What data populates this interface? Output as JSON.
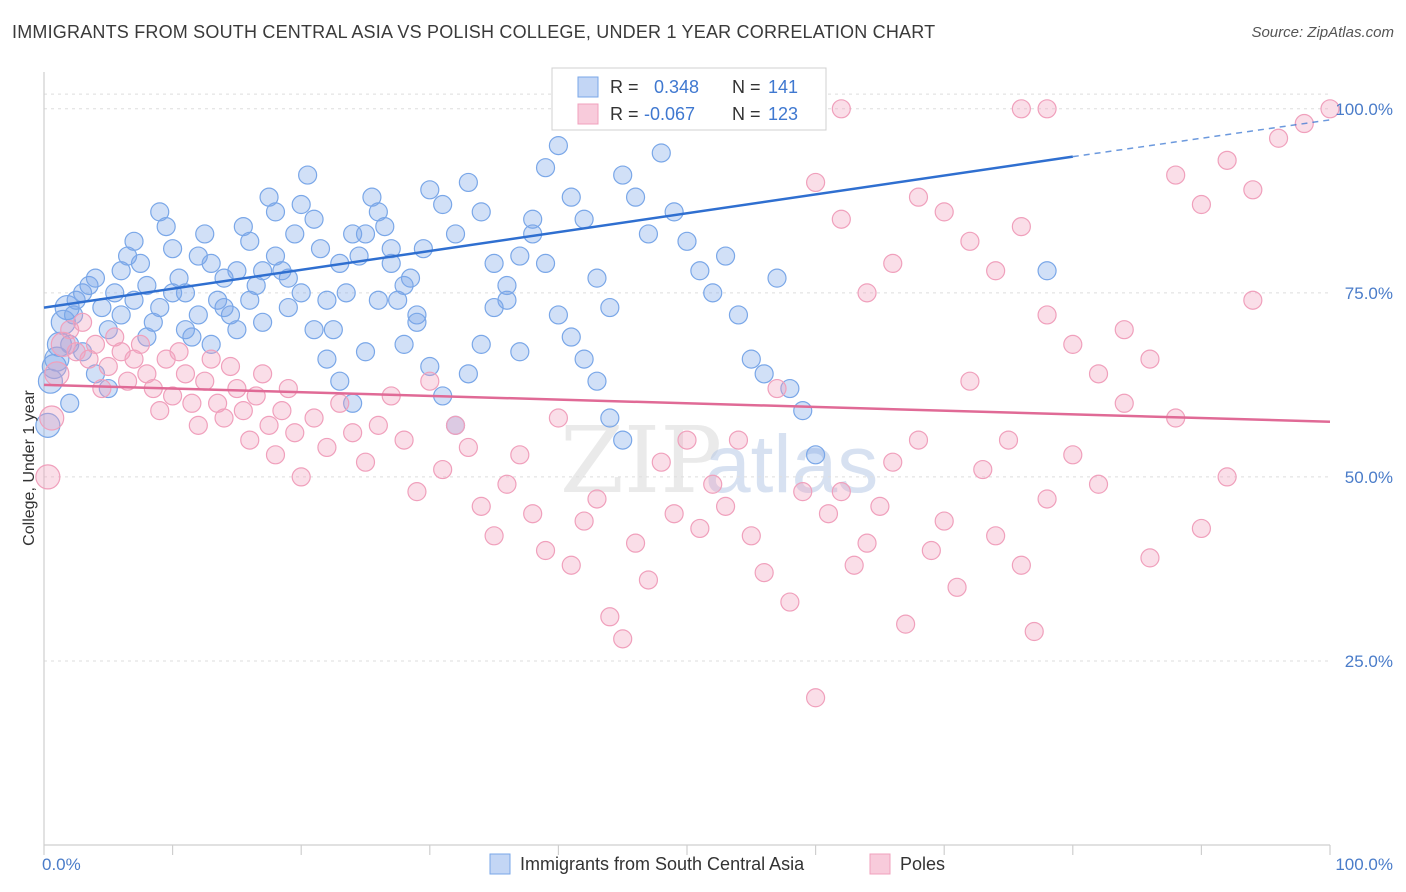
{
  "title": "IMMIGRANTS FROM SOUTH CENTRAL ASIA VS POLISH COLLEGE, UNDER 1 YEAR CORRELATION CHART",
  "source": "Source: ZipAtlas.com",
  "watermark": {
    "zip": "ZIP",
    "atlas": "atlas"
  },
  "legend_top": {
    "r_label": "R =",
    "n_label": "N =",
    "rows": [
      {
        "r": "0.348",
        "n": "141",
        "color": "#7aa7e8"
      },
      {
        "r": "-0.067",
        "n": "123",
        "color": "#f0a0bc"
      }
    ]
  },
  "chart_data": {
    "type": "scatter",
    "ylabel": "College, Under 1 year",
    "xlim": [
      0,
      100
    ],
    "ylim": [
      0,
      105
    ],
    "x_tick_labels": [
      "0.0%",
      "100.0%"
    ],
    "y_ticks": [
      25,
      50,
      75,
      100
    ],
    "y_tick_labels": [
      "25.0%",
      "50.0%",
      "75.0%",
      "100.0%"
    ],
    "grid": true,
    "series": [
      {
        "name": "Immigrants from South Central Asia",
        "color": "#7aa7e8",
        "line_color": "#2f6fd0",
        "trend": {
          "x0": 0,
          "y0": 73.0,
          "x1": 80,
          "y1": 93.5,
          "x_dash_end": 100,
          "y_dash_end": 98.5
        },
        "points": [
          [
            0.3,
            57
          ],
          [
            0.5,
            63
          ],
          [
            0.8,
            65
          ],
          [
            1,
            66
          ],
          [
            1.2,
            68
          ],
          [
            1.5,
            71
          ],
          [
            1.8,
            73
          ],
          [
            2,
            68
          ],
          [
            2.3,
            72
          ],
          [
            2.5,
            74
          ],
          [
            3,
            75
          ],
          [
            3.5,
            76
          ],
          [
            4,
            77
          ],
          [
            4.5,
            73
          ],
          [
            5,
            70
          ],
          [
            5.5,
            75
          ],
          [
            6,
            78
          ],
          [
            6.5,
            80
          ],
          [
            7,
            82
          ],
          [
            7.5,
            79
          ],
          [
            8,
            76
          ],
          [
            8.5,
            71
          ],
          [
            9,
            86
          ],
          [
            9.5,
            84
          ],
          [
            10,
            81
          ],
          [
            10.5,
            77
          ],
          [
            11,
            75
          ],
          [
            11.5,
            69
          ],
          [
            12,
            80
          ],
          [
            12.5,
            83
          ],
          [
            13,
            79
          ],
          [
            13.5,
            74
          ],
          [
            14,
            77
          ],
          [
            14.5,
            72
          ],
          [
            15,
            78
          ],
          [
            15.5,
            84
          ],
          [
            16,
            82
          ],
          [
            16.5,
            76
          ],
          [
            17,
            71
          ],
          [
            17.5,
            88
          ],
          [
            18,
            86
          ],
          [
            18.5,
            78
          ],
          [
            19,
            73
          ],
          [
            19.5,
            83
          ],
          [
            20,
            87
          ],
          [
            20.5,
            91
          ],
          [
            21,
            85
          ],
          [
            21.5,
            81
          ],
          [
            22,
            74
          ],
          [
            22.5,
            70
          ],
          [
            23,
            79
          ],
          [
            23.5,
            75
          ],
          [
            24,
            83
          ],
          [
            24.5,
            80
          ],
          [
            25,
            83
          ],
          [
            25.5,
            88
          ],
          [
            26,
            86
          ],
          [
            26.5,
            84
          ],
          [
            27,
            79
          ],
          [
            27.5,
            74
          ],
          [
            28,
            68
          ],
          [
            28.5,
            77
          ],
          [
            29,
            72
          ],
          [
            29.5,
            81
          ],
          [
            30,
            89
          ],
          [
            31,
            87
          ],
          [
            32,
            83
          ],
          [
            33,
            90
          ],
          [
            34,
            86
          ],
          [
            35,
            79
          ],
          [
            36,
            74
          ],
          [
            37,
            67
          ],
          [
            38,
            83
          ],
          [
            39,
            92
          ],
          [
            40,
            95
          ],
          [
            41,
            88
          ],
          [
            42,
            85
          ],
          [
            43,
            77
          ],
          [
            44,
            73
          ],
          [
            45,
            91
          ],
          [
            46,
            88
          ],
          [
            47,
            83
          ],
          [
            48,
            94
          ],
          [
            49,
            86
          ],
          [
            50,
            82
          ],
          [
            51,
            78
          ],
          [
            52,
            75
          ],
          [
            53,
            80
          ],
          [
            54,
            72
          ],
          [
            55,
            66
          ],
          [
            56,
            64
          ],
          [
            57,
            77
          ],
          [
            58,
            62
          ],
          [
            59,
            59
          ],
          [
            60,
            53
          ],
          [
            2,
            60
          ],
          [
            3,
            67
          ],
          [
            4,
            64
          ],
          [
            5,
            62
          ],
          [
            6,
            72
          ],
          [
            7,
            74
          ],
          [
            8,
            69
          ],
          [
            9,
            73
          ],
          [
            10,
            75
          ],
          [
            11,
            70
          ],
          [
            12,
            72
          ],
          [
            13,
            68
          ],
          [
            14,
            73
          ],
          [
            15,
            70
          ],
          [
            16,
            74
          ],
          [
            17,
            78
          ],
          [
            18,
            80
          ],
          [
            19,
            77
          ],
          [
            20,
            75
          ],
          [
            21,
            70
          ],
          [
            22,
            66
          ],
          [
            23,
            63
          ],
          [
            24,
            60
          ],
          [
            25,
            67
          ],
          [
            26,
            74
          ],
          [
            27,
            81
          ],
          [
            28,
            76
          ],
          [
            29,
            71
          ],
          [
            30,
            65
          ],
          [
            31,
            61
          ],
          [
            32,
            57
          ],
          [
            33,
            64
          ],
          [
            34,
            68
          ],
          [
            35,
            73
          ],
          [
            36,
            76
          ],
          [
            37,
            80
          ],
          [
            38,
            85
          ],
          [
            39,
            79
          ],
          [
            40,
            72
          ],
          [
            41,
            69
          ],
          [
            42,
            66
          ],
          [
            43,
            63
          ],
          [
            44,
            58
          ],
          [
            45,
            55
          ],
          [
            78,
            78
          ]
        ]
      },
      {
        "name": "Poles",
        "color": "#f0a0bc",
        "line_color": "#e06a96",
        "trend": {
          "x0": 0,
          "y0": 62.5,
          "x1": 100,
          "y1": 57.5
        },
        "points": [
          [
            0.3,
            50
          ],
          [
            0.6,
            58
          ],
          [
            1,
            64
          ],
          [
            1.5,
            68
          ],
          [
            2,
            70
          ],
          [
            2.5,
            67
          ],
          [
            3,
            71
          ],
          [
            3.5,
            66
          ],
          [
            4,
            68
          ],
          [
            4.5,
            62
          ],
          [
            5,
            65
          ],
          [
            5.5,
            69
          ],
          [
            6,
            67
          ],
          [
            6.5,
            63
          ],
          [
            7,
            66
          ],
          [
            7.5,
            68
          ],
          [
            8,
            64
          ],
          [
            8.5,
            62
          ],
          [
            9,
            59
          ],
          [
            9.5,
            66
          ],
          [
            10,
            61
          ],
          [
            10.5,
            67
          ],
          [
            11,
            64
          ],
          [
            11.5,
            60
          ],
          [
            12,
            57
          ],
          [
            12.5,
            63
          ],
          [
            13,
            66
          ],
          [
            13.5,
            60
          ],
          [
            14,
            58
          ],
          [
            14.5,
            65
          ],
          [
            15,
            62
          ],
          [
            15.5,
            59
          ],
          [
            16,
            55
          ],
          [
            16.5,
            61
          ],
          [
            17,
            64
          ],
          [
            17.5,
            57
          ],
          [
            18,
            53
          ],
          [
            18.5,
            59
          ],
          [
            19,
            62
          ],
          [
            19.5,
            56
          ],
          [
            20,
            50
          ],
          [
            21,
            58
          ],
          [
            22,
            54
          ],
          [
            23,
            60
          ],
          [
            24,
            56
          ],
          [
            25,
            52
          ],
          [
            26,
            57
          ],
          [
            27,
            61
          ],
          [
            28,
            55
          ],
          [
            29,
            48
          ],
          [
            30,
            63
          ],
          [
            31,
            51
          ],
          [
            32,
            57
          ],
          [
            33,
            54
          ],
          [
            34,
            46
          ],
          [
            35,
            42
          ],
          [
            36,
            49
          ],
          [
            37,
            53
          ],
          [
            38,
            45
          ],
          [
            39,
            40
          ],
          [
            40,
            58
          ],
          [
            41,
            38
          ],
          [
            42,
            44
          ],
          [
            43,
            47
          ],
          [
            44,
            31
          ],
          [
            45,
            28
          ],
          [
            46,
            41
          ],
          [
            47,
            36
          ],
          [
            48,
            52
          ],
          [
            49,
            45
          ],
          [
            50,
            55
          ],
          [
            51,
            43
          ],
          [
            52,
            49
          ],
          [
            53,
            46
          ],
          [
            54,
            55
          ],
          [
            55,
            42
          ],
          [
            56,
            37
          ],
          [
            57,
            62
          ],
          [
            58,
            33
          ],
          [
            59,
            48
          ],
          [
            60,
            20
          ],
          [
            61,
            45
          ],
          [
            62,
            48
          ],
          [
            63,
            38
          ],
          [
            64,
            41
          ],
          [
            65,
            46
          ],
          [
            66,
            52
          ],
          [
            67,
            30
          ],
          [
            68,
            55
          ],
          [
            69,
            40
          ],
          [
            70,
            44
          ],
          [
            71,
            35
          ],
          [
            72,
            63
          ],
          [
            73,
            51
          ],
          [
            74,
            42
          ],
          [
            75,
            55
          ],
          [
            76,
            38
          ],
          [
            77,
            29
          ],
          [
            78,
            47
          ],
          [
            80,
            53
          ],
          [
            82,
            49
          ],
          [
            84,
            60
          ],
          [
            86,
            39
          ],
          [
            88,
            58
          ],
          [
            90,
            43
          ],
          [
            92,
            50
          ],
          [
            94,
            74
          ],
          [
            60,
            90
          ],
          [
            62,
            85
          ],
          [
            64,
            75
          ],
          [
            66,
            79
          ],
          [
            68,
            88
          ],
          [
            70,
            86
          ],
          [
            72,
            82
          ],
          [
            74,
            78
          ],
          [
            76,
            84
          ],
          [
            78,
            72
          ],
          [
            80,
            68
          ],
          [
            82,
            64
          ],
          [
            84,
            70
          ],
          [
            86,
            66
          ],
          [
            88,
            91
          ],
          [
            90,
            87
          ],
          [
            92,
            93
          ],
          [
            94,
            89
          ],
          [
            96,
            96
          ],
          [
            98,
            98
          ],
          [
            62,
            100
          ],
          [
            76,
            100
          ],
          [
            78,
            100
          ],
          [
            100,
            100
          ]
        ]
      }
    ]
  },
  "legend_bottom": [
    {
      "label": "Immigrants from South Central Asia",
      "color": "#7aa7e8"
    },
    {
      "label": "Poles",
      "color": "#f0a0bc"
    }
  ]
}
